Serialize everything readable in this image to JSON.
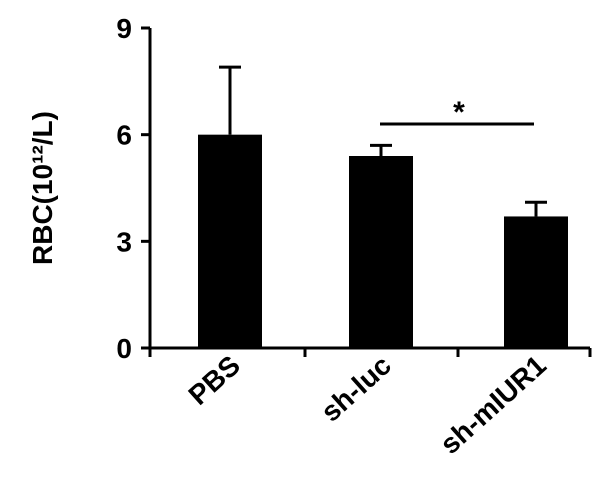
{
  "chart_data": {
    "type": "bar",
    "title": "",
    "xlabel": "",
    "ylabel": "RBC(10¹²/L)",
    "categories": [
      "PBS",
      "sh-luc",
      "sh-mIUR1"
    ],
    "values": [
      6.0,
      5.4,
      3.7
    ],
    "error_bars": [
      1.9,
      0.3,
      0.4
    ],
    "ylim": [
      0,
      9
    ],
    "yticks": [
      "0",
      "3",
      "6",
      "9"
    ],
    "grid": false,
    "legend": "none",
    "bar_color": "#000000",
    "significance": {
      "between": [
        "sh-luc",
        "sh-mIUR1"
      ],
      "label": "*"
    }
  }
}
